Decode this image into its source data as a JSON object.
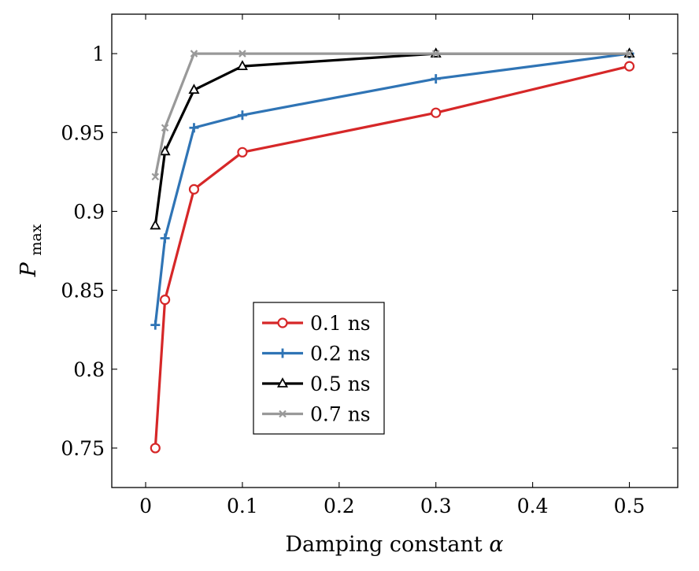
{
  "chart_data": {
    "type": "line",
    "xlabel_text": "Damping constant",
    "xlabel_symbol": "α",
    "ylabel_main": "P",
    "ylabel_sub": "max",
    "xlim": [
      -0.035,
      0.55
    ],
    "ylim": [
      0.725,
      1.025
    ],
    "x_ticks": [
      0,
      0.1,
      0.2,
      0.3,
      0.4,
      0.5
    ],
    "x_tick_labels": [
      "0",
      "0.1",
      "0.2",
      "0.3",
      "0.4",
      "0.5"
    ],
    "y_ticks": [
      0.75,
      0.8,
      0.85,
      0.9,
      0.95,
      1
    ],
    "y_tick_labels": [
      "0.75",
      "0.8",
      "0.85",
      "0.9",
      "0.95",
      "1"
    ],
    "legend_position": "lower-center",
    "series": [
      {
        "name": "0.1 ns",
        "color": "#d62728",
        "marker": "circle",
        "x": [
          0.01,
          0.02,
          0.05,
          0.1,
          0.3,
          0.5
        ],
        "y": [
          0.75,
          0.844,
          0.914,
          0.9375,
          0.9625,
          0.992
        ]
      },
      {
        "name": "0.2 ns",
        "color": "#2f74b5",
        "marker": "plus",
        "x": [
          0.01,
          0.02,
          0.05,
          0.1,
          0.3,
          0.5
        ],
        "y": [
          0.828,
          0.883,
          0.953,
          0.961,
          0.984,
          1.0
        ]
      },
      {
        "name": "0.5 ns",
        "color": "#000000",
        "marker": "triangle",
        "x": [
          0.01,
          0.02,
          0.05,
          0.1,
          0.3,
          0.5
        ],
        "y": [
          0.891,
          0.938,
          0.977,
          0.992,
          1.0,
          1.0
        ]
      },
      {
        "name": "0.7 ns",
        "color": "#999999",
        "marker": "cross",
        "x": [
          0.01,
          0.02,
          0.05,
          0.1,
          0.3,
          0.5
        ],
        "y": [
          0.922,
          0.953,
          1.0,
          1.0,
          1.0,
          1.0
        ]
      }
    ]
  }
}
